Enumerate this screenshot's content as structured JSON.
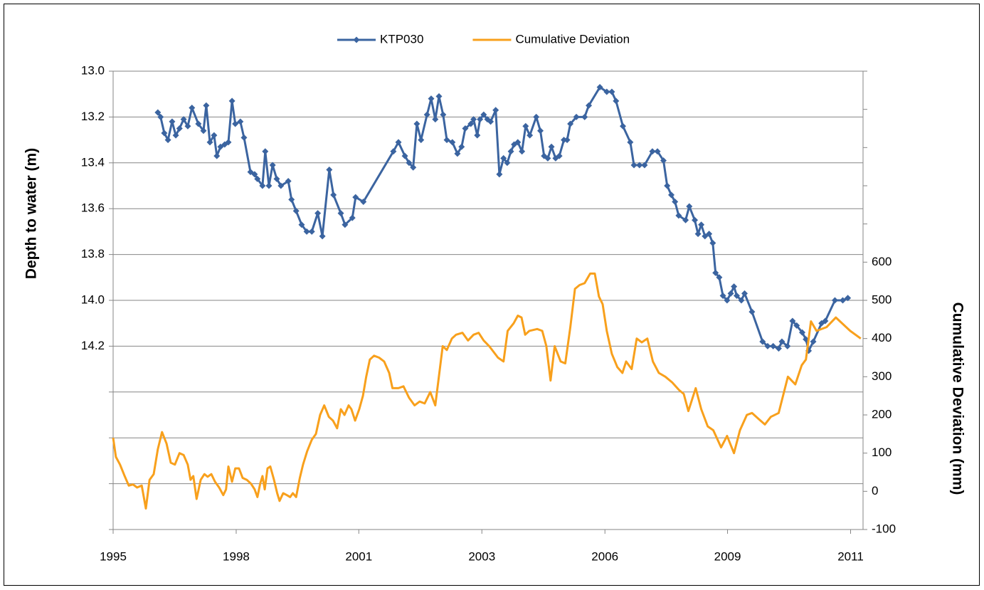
{
  "chart_data": {
    "type": "line",
    "y_title": "Depth to water (m)",
    "y2_title": "Cumulative Deviation (mm)",
    "legend": "top",
    "grid": true,
    "yreverse": true,
    "xlim": [
      1995.75,
      2012.02
    ],
    "xticks": [
      {
        "value": 1995.75,
        "label": "1995"
      },
      {
        "value": 1998.42,
        "label": "1998"
      },
      {
        "value": 2001.08,
        "label": "2001"
      },
      {
        "value": 2003.75,
        "label": "2003"
      },
      {
        "value": 2006.42,
        "label": "2006"
      },
      {
        "value": 2009.08,
        "label": "2009"
      },
      {
        "value": 2011.75,
        "label": "2011"
      }
    ],
    "ylim": [
      13.0,
      15.0
    ],
    "yticks": [
      {
        "value": 13.0,
        "label": "13.0"
      },
      {
        "value": 13.2,
        "label": "13.2"
      },
      {
        "value": 13.4,
        "label": "13.4"
      },
      {
        "value": 13.6,
        "label": "13.6"
      },
      {
        "value": 13.8,
        "label": "13.8"
      },
      {
        "value": 14.0,
        "label": "14.0"
      },
      {
        "value": 14.2,
        "label": "14.2"
      }
    ],
    "y2lim": [
      -100,
      1100
    ],
    "y2ticks": [
      -100,
      0,
      100,
      200,
      300,
      400,
      500,
      600
    ],
    "series": [
      {
        "name": "KTP030",
        "color": "#3b64a0",
        "marker": "diamond",
        "x": [
          1996.72,
          1996.78,
          1996.86,
          1996.94,
          1997.03,
          1997.11,
          1997.19,
          1997.28,
          1997.37,
          1997.46,
          1997.6,
          1997.71,
          1997.77,
          1997.85,
          1997.94,
          1998.0,
          1998.08,
          1998.17,
          1998.25,
          1998.33,
          1998.4,
          1998.51,
          1998.59,
          1998.73,
          1998.82,
          1998.88,
          1998.99,
          1999.05,
          1999.13,
          1999.21,
          1999.3,
          1999.39,
          1999.55,
          1999.62,
          1999.72,
          1999.84,
          1999.95,
          2000.06,
          2000.19,
          2000.29,
          2000.44,
          2000.53,
          2000.69,
          2000.78,
          2000.94,
          2001.01,
          2001.18,
          2001.83,
          2001.94,
          2002.08,
          2002.17,
          2002.26,
          2002.34,
          2002.43,
          2002.56,
          2002.65,
          2002.74,
          2002.82,
          2002.91,
          2002.99,
          2003.11,
          2003.22,
          2003.31,
          2003.39,
          2003.51,
          2003.57,
          2003.65,
          2003.71,
          2003.79,
          2003.87,
          2003.94,
          2004.05,
          2004.13,
          2004.22,
          2004.3,
          2004.38,
          2004.45,
          2004.53,
          2004.62,
          2004.7,
          2004.79,
          2004.93,
          2005.02,
          2005.1,
          2005.18,
          2005.26,
          2005.35,
          2005.43,
          2005.53,
          2005.6,
          2005.67,
          2005.8,
          2005.98,
          2006.07,
          2006.31,
          2006.46,
          2006.57,
          2006.66,
          2006.81,
          2006.97,
          2007.05,
          2007.17,
          2007.28,
          2007.45,
          2007.56,
          2007.69,
          2007.77,
          2007.86,
          2007.94,
          2008.02,
          2008.17,
          2008.25,
          2008.37,
          2008.44,
          2008.51,
          2008.59,
          2008.68,
          2008.76,
          2008.82,
          2008.9,
          2008.98,
          2009.07,
          2009.15,
          2009.22,
          2009.28,
          2009.38,
          2009.45,
          2009.61,
          2009.84,
          2009.95,
          2010.07,
          2010.19,
          2010.26,
          2010.38,
          2010.49,
          2010.58,
          2010.7,
          2010.78,
          2010.84,
          2010.94,
          2011.12,
          2011.2,
          2011.41,
          2011.58,
          2011.69
        ],
        "values": [
          13.18,
          13.2,
          13.27,
          13.3,
          13.22,
          13.28,
          13.25,
          13.21,
          13.24,
          13.16,
          13.23,
          13.26,
          13.15,
          13.31,
          13.28,
          13.37,
          13.33,
          13.32,
          13.31,
          13.13,
          13.23,
          13.22,
          13.29,
          13.44,
          13.45,
          13.47,
          13.5,
          13.35,
          13.5,
          13.41,
          13.47,
          13.5,
          13.48,
          13.56,
          13.61,
          13.67,
          13.7,
          13.7,
          13.62,
          13.72,
          13.43,
          13.54,
          13.62,
          13.67,
          13.64,
          13.55,
          13.57,
          13.35,
          13.31,
          13.37,
          13.4,
          13.42,
          13.23,
          13.3,
          13.19,
          13.12,
          13.21,
          13.11,
          13.19,
          13.3,
          13.31,
          13.36,
          13.33,
          13.25,
          13.23,
          13.21,
          13.28,
          13.21,
          13.19,
          13.21,
          13.22,
          13.17,
          13.45,
          13.38,
          13.4,
          13.35,
          13.32,
          13.31,
          13.35,
          13.24,
          13.28,
          13.2,
          13.26,
          13.37,
          13.38,
          13.33,
          13.38,
          13.37,
          13.3,
          13.3,
          13.23,
          13.2,
          13.2,
          13.15,
          13.07,
          13.09,
          13.09,
          13.13,
          13.24,
          13.31,
          13.41,
          13.41,
          13.41,
          13.35,
          13.35,
          13.39,
          13.5,
          13.54,
          13.57,
          13.63,
          13.65,
          13.59,
          13.65,
          13.71,
          13.67,
          13.72,
          13.71,
          13.75,
          13.88,
          13.9,
          13.98,
          14.0,
          13.97,
          13.94,
          13.98,
          14.0,
          13.97,
          14.05,
          14.18,
          14.2,
          14.2,
          14.21,
          14.18,
          14.2,
          14.09,
          14.11,
          14.14,
          14.17,
          14.22,
          14.18,
          14.1,
          14.09,
          14.0,
          14.0,
          13.99
        ]
      },
      {
        "name": "Cumulative Deviation",
        "color": "#f8a01c",
        "axis": "y2",
        "x": [
          1995.75,
          1995.81,
          1995.9,
          1996.0,
          1996.09,
          1996.18,
          1996.27,
          1996.37,
          1996.46,
          1996.54,
          1996.63,
          1996.72,
          1996.81,
          1996.91,
          1997.0,
          1997.09,
          1997.19,
          1997.28,
          1997.37,
          1997.43,
          1997.49,
          1997.56,
          1997.65,
          1997.73,
          1997.8,
          1997.88,
          1997.96,
          1998.05,
          1998.14,
          1998.2,
          1998.25,
          1998.33,
          1998.4,
          1998.48,
          1998.56,
          1998.65,
          1998.74,
          1998.82,
          1998.88,
          1998.94,
          1998.99,
          1999.04,
          1999.1,
          1999.16,
          1999.24,
          1999.31,
          1999.36,
          1999.44,
          1999.52,
          1999.59,
          1999.65,
          1999.72,
          1999.8,
          1999.87,
          1999.96,
          2000.06,
          2000.15,
          2000.24,
          2000.33,
          2000.43,
          2000.52,
          2000.61,
          2000.69,
          2000.77,
          2000.86,
          2000.92,
          2001.0,
          2001.09,
          2001.17,
          2001.24,
          2001.32,
          2001.41,
          2001.52,
          2001.63,
          2001.74,
          2001.81,
          2001.94,
          2002.05,
          2002.17,
          2002.29,
          2002.4,
          2002.51,
          2002.63,
          2002.74,
          2002.9,
          2002.99,
          2003.1,
          2003.19,
          2003.33,
          2003.45,
          2003.57,
          2003.68,
          2003.79,
          2003.91,
          2004.1,
          2004.22,
          2004.31,
          2004.44,
          2004.53,
          2004.61,
          2004.69,
          2004.78,
          2004.95,
          2005.06,
          2005.15,
          2005.24,
          2005.33,
          2005.46,
          2005.56,
          2005.67,
          2005.77,
          2005.87,
          2005.98,
          2006.1,
          2006.2,
          2006.29,
          2006.37,
          2006.46,
          2006.57,
          2006.69,
          2006.8,
          2006.88,
          2007.0,
          2007.11,
          2007.22,
          2007.34,
          2007.46,
          2007.59,
          2007.73,
          2007.88,
          2008.03,
          2008.13,
          2008.23,
          2008.39,
          2008.51,
          2008.65,
          2008.77,
          2008.94,
          2009.07,
          2009.22,
          2009.35,
          2009.5,
          2009.61,
          2009.75,
          2009.89,
          2010.02,
          2010.19,
          2010.39,
          2010.55,
          2010.69,
          2010.78,
          2010.89,
          2011.01,
          2011.23,
          2011.43,
          2011.74,
          2011.97
        ],
        "values": [
          140,
          90,
          70,
          40,
          15,
          18,
          10,
          15,
          -45,
          30,
          45,
          110,
          155,
          125,
          75,
          70,
          100,
          95,
          70,
          30,
          40,
          -20,
          30,
          45,
          38,
          45,
          25,
          10,
          -10,
          5,
          65,
          25,
          60,
          60,
          35,
          30,
          20,
          5,
          -15,
          20,
          40,
          5,
          60,
          65,
          30,
          -5,
          -25,
          -5,
          -10,
          -15,
          -5,
          -15,
          35,
          70,
          105,
          135,
          150,
          200,
          225,
          195,
          185,
          165,
          215,
          200,
          225,
          215,
          185,
          215,
          250,
          300,
          345,
          355,
          350,
          340,
          310,
          270,
          270,
          275,
          245,
          225,
          235,
          230,
          260,
          225,
          380,
          370,
          400,
          410,
          415,
          395,
          410,
          415,
          395,
          380,
          350,
          340,
          420,
          440,
          460,
          455,
          410,
          420,
          425,
          420,
          380,
          290,
          380,
          340,
          335,
          430,
          530,
          540,
          545,
          570,
          570,
          510,
          490,
          420,
          360,
          325,
          310,
          340,
          320,
          400,
          390,
          400,
          340,
          310,
          300,
          285,
          265,
          255,
          210,
          270,
          215,
          170,
          160,
          115,
          145,
          100,
          160,
          200,
          205,
          190,
          175,
          195,
          205,
          300,
          280,
          330,
          345,
          445,
          420,
          430,
          455,
          420,
          400
        ]
      }
    ]
  }
}
